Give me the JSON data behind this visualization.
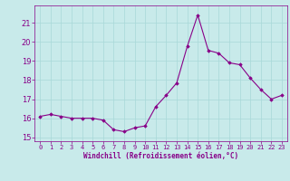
{
  "x_data": [
    0,
    1,
    2,
    3,
    4,
    5,
    6,
    7,
    8,
    9,
    10,
    11,
    12,
    13,
    14,
    15,
    16,
    17,
    18,
    19,
    20,
    21,
    22,
    23
  ],
  "y_data": [
    16.1,
    16.2,
    16.1,
    16.0,
    16.0,
    16.0,
    15.9,
    15.4,
    15.3,
    15.5,
    15.6,
    16.6,
    17.2,
    17.85,
    19.75,
    21.4,
    19.55,
    19.4,
    18.9,
    18.8,
    18.1,
    17.5,
    17.0,
    17.2
  ],
  "line_color": "#880088",
  "marker_color": "#880088",
  "bg_color": "#c8eaea",
  "grid_color": "#a8d8d8",
  "tick_color": "#880088",
  "xlabel": "Windchill (Refroidissement éolien,°C)",
  "xlabel_color": "#880088",
  "ylim": [
    14.8,
    21.9
  ],
  "yticks": [
    15,
    16,
    17,
    18,
    19,
    20,
    21
  ],
  "xticks": [
    0,
    1,
    2,
    3,
    4,
    5,
    6,
    7,
    8,
    9,
    10,
    11,
    12,
    13,
    14,
    15,
    16,
    17,
    18,
    19,
    20,
    21,
    22,
    23
  ],
  "figsize": [
    3.2,
    2.0
  ],
  "dpi": 100
}
